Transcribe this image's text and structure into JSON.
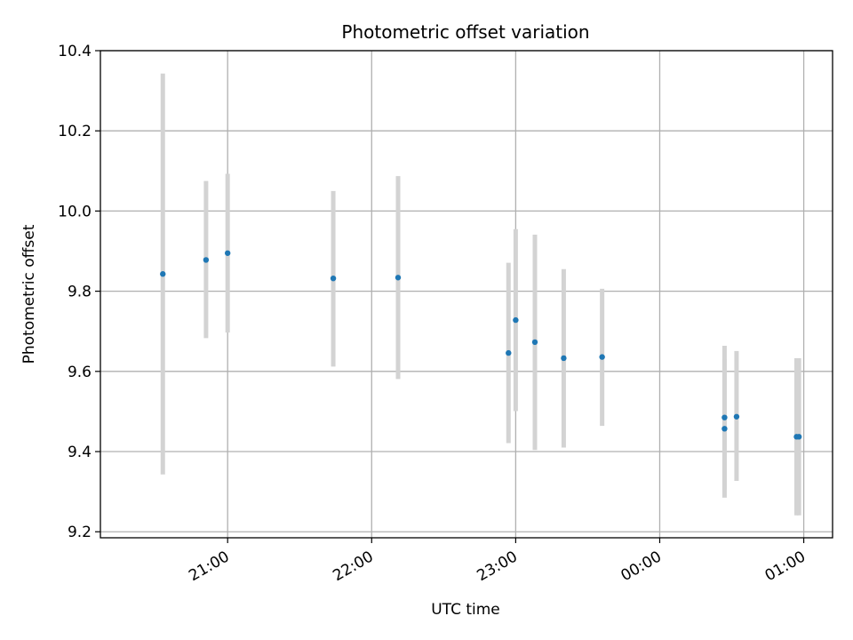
{
  "chart_data": {
    "type": "scatter",
    "title": "Photometric offset variation",
    "xlabel": "UTC time",
    "ylabel": "Photometric offset",
    "x_axis_type": "time",
    "xlim": [
      "20:07",
      "01:12"
    ],
    "ylim": [
      9.185,
      10.4
    ],
    "x_ticks": [
      "21:00",
      "22:00",
      "23:00",
      "00:00",
      "01:00"
    ],
    "y_ticks": [
      "9.2",
      "9.4",
      "9.6",
      "9.8",
      "10.0",
      "10.2",
      "10.4"
    ],
    "grid": true,
    "colors": {
      "point": "#1f77b4",
      "errorbar": "#d3d3d3",
      "grid": "#b0b0b0"
    },
    "series": [
      {
        "points": [
          {
            "x": "20:33",
            "y": 9.843,
            "low": 9.343,
            "high": 10.343
          },
          {
            "x": "20:51",
            "y": 9.878,
            "low": 9.683,
            "high": 10.075
          },
          {
            "x": "21:00",
            "y": 9.895,
            "low": 9.697,
            "high": 10.093
          },
          {
            "x": "21:44",
            "y": 9.832,
            "low": 9.612,
            "high": 10.05
          },
          {
            "x": "22:11",
            "y": 9.834,
            "low": 9.581,
            "high": 10.087
          },
          {
            "x": "22:57",
            "y": 9.646,
            "low": 9.421,
            "high": 9.871
          },
          {
            "x": "23:00",
            "y": 9.728,
            "low": 9.501,
            "high": 9.955
          },
          {
            "x": "23:08",
            "y": 9.673,
            "low": 9.404,
            "high": 9.941
          },
          {
            "x": "23:20",
            "y": 9.633,
            "low": 9.41,
            "high": 9.855
          },
          {
            "x": "23:36",
            "y": 9.636,
            "low": 9.464,
            "high": 9.806
          },
          {
            "x": "00:27",
            "y": 9.485,
            "low": 9.306,
            "high": 9.664
          },
          {
            "x": "00:27",
            "y": 9.457,
            "low": 9.285,
            "high": 9.63
          },
          {
            "x": "00:32",
            "y": 9.487,
            "low": 9.327,
            "high": 9.651
          },
          {
            "x": "00:57",
            "y": 9.437,
            "low": 9.241,
            "high": 9.633
          },
          {
            "x": "00:58",
            "y": 9.437,
            "low": 9.241,
            "high": 9.633
          }
        ]
      }
    ]
  }
}
